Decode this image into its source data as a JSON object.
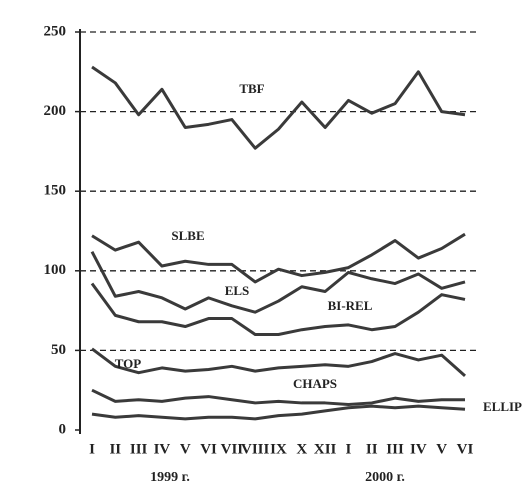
{
  "chart_data": {
    "type": "line",
    "categories": [
      "I",
      "II",
      "III",
      "IV",
      "V",
      "VI",
      "VII",
      "VIII",
      "IX",
      "X",
      "XII",
      "I",
      "II",
      "III",
      "IV",
      "V",
      "VI"
    ],
    "year_labels": [
      "1999 г.",
      "2000 г."
    ],
    "series": [
      {
        "name": "TBF",
        "color": "#3a3a3a",
        "values": [
          228,
          218,
          198,
          214,
          190,
          192,
          195,
          177,
          189,
          206,
          190,
          207,
          199,
          205,
          225,
          200,
          198
        ]
      },
      {
        "name": "SLBE",
        "color": "#3a3a3a",
        "values": [
          122,
          113,
          118,
          103,
          106,
          104,
          104,
          93,
          101,
          97,
          99,
          102,
          110,
          119,
          108,
          114,
          123
        ]
      },
      {
        "name": "ELS",
        "color": "#3a3a3a",
        "values": [
          112,
          84,
          87,
          83,
          76,
          83,
          78,
          74,
          81,
          90,
          87,
          99,
          95,
          92,
          98,
          89,
          93
        ]
      },
      {
        "name": "BI-REL",
        "color": "#3a3a3a",
        "values": [
          92,
          72,
          68,
          68,
          65,
          70,
          70,
          60,
          60,
          63,
          65,
          66,
          63,
          65,
          74,
          85,
          82
        ]
      },
      {
        "name": "TOP",
        "color": "#3a3a3a",
        "values": [
          51,
          40,
          36,
          39,
          37,
          38,
          40,
          37,
          39,
          40,
          41,
          40,
          43,
          48,
          44,
          47,
          34
        ]
      },
      {
        "name": "CHAPS",
        "color": "#3a3a3a",
        "values": [
          25,
          18,
          19,
          18,
          20,
          21,
          19,
          17,
          18,
          17,
          17,
          16,
          17,
          20,
          18,
          19,
          19
        ]
      },
      {
        "name": "ELLIP",
        "color": "#3a3a3a",
        "values": [
          10,
          8,
          9,
          8,
          7,
          8,
          8,
          7,
          9,
          10,
          12,
          14,
          15,
          14,
          15,
          14,
          13
        ]
      }
    ],
    "ylim": [
      0,
      250
    ],
    "yticks": [
      0,
      50,
      100,
      150,
      200,
      250
    ],
    "grid": true
  }
}
